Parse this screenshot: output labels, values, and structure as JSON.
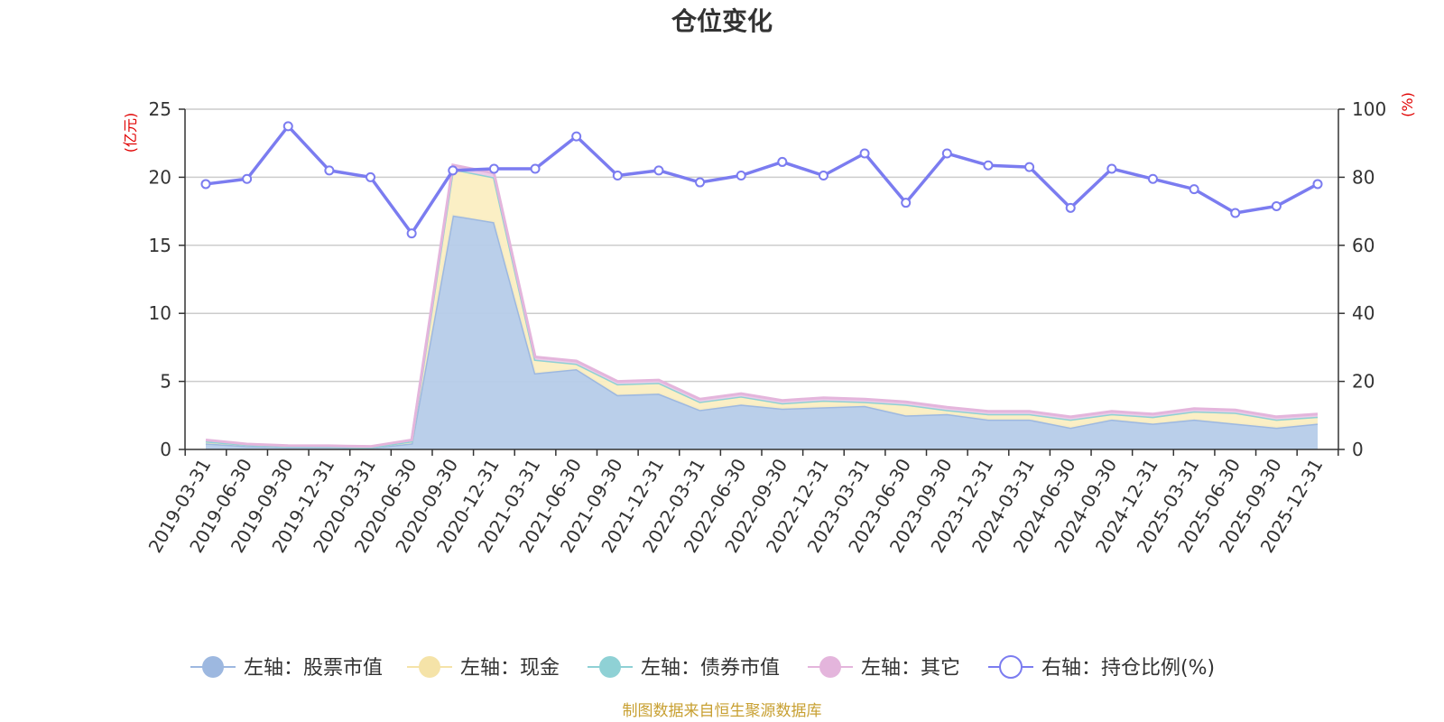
{
  "chart_data": {
    "type": "area",
    "title": "仓位变化",
    "y_left_unit": "(亿元)",
    "y_right_unit": "(%)",
    "ylim_left": [
      0,
      25
    ],
    "ylim_right": [
      0,
      100
    ],
    "y_left_ticks": [
      0,
      5,
      10,
      15,
      20,
      25
    ],
    "y_right_ticks": [
      0,
      20,
      40,
      60,
      80,
      100
    ],
    "grid": true,
    "legend_position": "bottom",
    "categories": [
      "2019-03-31",
      "2019-06-30",
      "2019-09-30",
      "2019-12-31",
      "2020-03-31",
      "2020-06-30",
      "2020-09-30",
      "2020-12-31",
      "2021-03-31",
      "2021-06-30",
      "2021-09-30",
      "2021-12-31",
      "2022-03-31",
      "2022-06-30",
      "2022-09-30",
      "2022-12-31",
      "2023-03-31",
      "2023-06-30",
      "2023-09-30",
      "2023-12-31",
      "2024-03-31",
      "2024-06-30",
      "2024-09-30",
      "2024-12-31",
      "2025-03-31",
      "2025-06-30",
      "2025-09-30",
      "2025-12-31"
    ],
    "series": [
      {
        "name": "左轴：股票市值",
        "axis": "left",
        "color": "#9db8e0",
        "fill": "#b6cce9",
        "values": [
          0.45,
          0.25,
          0.18,
          0.17,
          0.12,
          0.45,
          17.2,
          16.7,
          5.6,
          5.9,
          4.0,
          4.1,
          2.9,
          3.3,
          3.0,
          3.1,
          3.2,
          2.5,
          2.6,
          2.2,
          2.2,
          1.6,
          2.2,
          1.9,
          2.2,
          1.9,
          1.6,
          1.9
        ]
      },
      {
        "name": "左轴：现金",
        "axis": "left",
        "color": "#f5e3a8",
        "fill": "#fbeec2",
        "values": [
          0.15,
          0.1,
          0.05,
          0.05,
          0.05,
          0.15,
          3.4,
          3.3,
          1.0,
          0.4,
          0.8,
          0.8,
          0.6,
          0.6,
          0.4,
          0.5,
          0.3,
          0.8,
          0.3,
          0.4,
          0.4,
          0.6,
          0.4,
          0.5,
          0.6,
          0.8,
          0.6,
          0.5
        ]
      },
      {
        "name": "左轴：债券市值",
        "axis": "left",
        "color": "#8fd1d5",
        "fill": "#a8dcdf",
        "values": [
          0,
          0,
          0,
          0,
          0,
          0,
          0,
          0,
          0,
          0,
          0,
          0,
          0,
          0,
          0,
          0,
          0,
          0,
          0,
          0,
          0,
          0,
          0,
          0,
          0,
          0,
          0,
          0
        ]
      },
      {
        "name": "左轴：其它",
        "axis": "left",
        "color": "#e4b5dc",
        "fill": "#efcbe9",
        "values": [
          0.1,
          0.05,
          0.05,
          0.05,
          0.05,
          0.1,
          0.3,
          0.3,
          0.2,
          0.2,
          0.2,
          0.2,
          0.2,
          0.2,
          0.2,
          0.2,
          0.2,
          0.2,
          0.2,
          0.2,
          0.2,
          0.2,
          0.2,
          0.2,
          0.2,
          0.2,
          0.2,
          0.2
        ]
      },
      {
        "name": "右轴：持仓比例(%)",
        "axis": "right",
        "color": "#7b7cf0",
        "values": [
          78,
          79.5,
          95,
          82,
          80,
          63.5,
          82,
          82.5,
          82.5,
          92,
          80.5,
          82,
          78.5,
          80.5,
          84.5,
          80.5,
          87,
          72.5,
          87,
          83.5,
          83,
          71,
          82.5,
          79.5,
          76.5,
          69.5,
          71.5,
          78
        ]
      }
    ]
  },
  "source_note": "制图数据来自恒生聚源数据库"
}
